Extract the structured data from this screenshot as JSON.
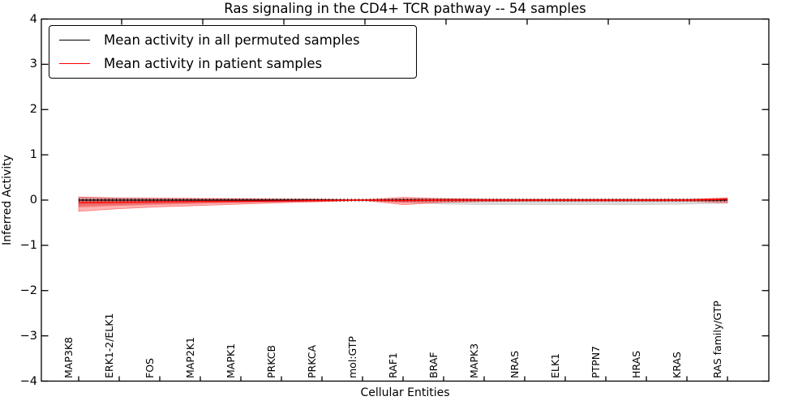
{
  "title": "Ras signaling in the CD4+ TCR pathway -- 54 samples",
  "axes": {
    "xlabel": "Cellular Entities",
    "ylabel": "Inferred Activity"
  },
  "legend": {
    "position": "upper left",
    "items": [
      {
        "label": "Mean activity in all permuted samples",
        "color": "#000000"
      },
      {
        "label": "Mean activity in patient samples",
        "color": "#ff0000"
      }
    ]
  },
  "chart_data": {
    "type": "line",
    "title": "Ras signaling in the CD4+ TCR pathway -- 54 samples",
    "xlabel": "Cellular Entities",
    "ylabel": "Inferred Activity",
    "ylim": [
      -4,
      4
    ],
    "yticks": [
      4,
      3,
      2,
      1,
      0,
      -1,
      -2,
      -3,
      -4
    ],
    "grid": false,
    "n_samples": 54,
    "categories": [
      "MAP3K8",
      "ERK1-2/ELK1",
      "FOS",
      "MAP2K1",
      "MAPK1",
      "PRKCB",
      "PRKCA",
      "mol:GTP",
      "RAF1",
      "BRAF",
      "MAPK3",
      "NRAS",
      "ELK1",
      "PTPN7",
      "HRAS",
      "KRAS",
      "RAS family/GTP"
    ],
    "marker_note": "small black dash marker at every entity along the permuted-mean line",
    "series": [
      {
        "name": "Mean activity in all permuted samples",
        "color": "#000000",
        "band_color": "#aaaaaa",
        "values": [
          0,
          0,
          0,
          0,
          0,
          0,
          0,
          0,
          0,
          0,
          0,
          0,
          0,
          0,
          0,
          0,
          0
        ],
        "band_upper": [
          0.06,
          0.05,
          0.04,
          0.035,
          0.03,
          0.02,
          0.015,
          0.005,
          0.03,
          0.04,
          0.02,
          0.02,
          0.02,
          0.02,
          0.02,
          0.02,
          0.02
        ],
        "band_lower": [
          -0.12,
          -0.1,
          -0.08,
          -0.06,
          -0.05,
          -0.04,
          -0.02,
          -0.005,
          -0.04,
          -0.09,
          -0.1,
          -0.1,
          -0.1,
          -0.1,
          -0.1,
          -0.09,
          -0.07
        ]
      },
      {
        "name": "Mean activity in patient samples",
        "color": "#ff0000",
        "band_color": "#ff0000",
        "values": [
          -0.06,
          -0.05,
          -0.04,
          -0.03,
          -0.025,
          -0.02,
          -0.01,
          0,
          -0.01,
          0,
          0,
          0,
          0,
          0,
          0,
          0,
          0.02
        ],
        "band_upper": [
          0.07,
          0.045,
          0.04,
          0.035,
          0.03,
          0.025,
          0.02,
          0.005,
          0.06,
          0.03,
          0.02,
          0.015,
          0.015,
          0.015,
          0.015,
          0.015,
          0.05
        ],
        "band_lower": [
          -0.25,
          -0.19,
          -0.15,
          -0.12,
          -0.09,
          -0.06,
          -0.035,
          -0.005,
          -0.1,
          -0.05,
          -0.03,
          -0.025,
          -0.025,
          -0.025,
          -0.025,
          -0.025,
          -0.06
        ]
      }
    ]
  }
}
